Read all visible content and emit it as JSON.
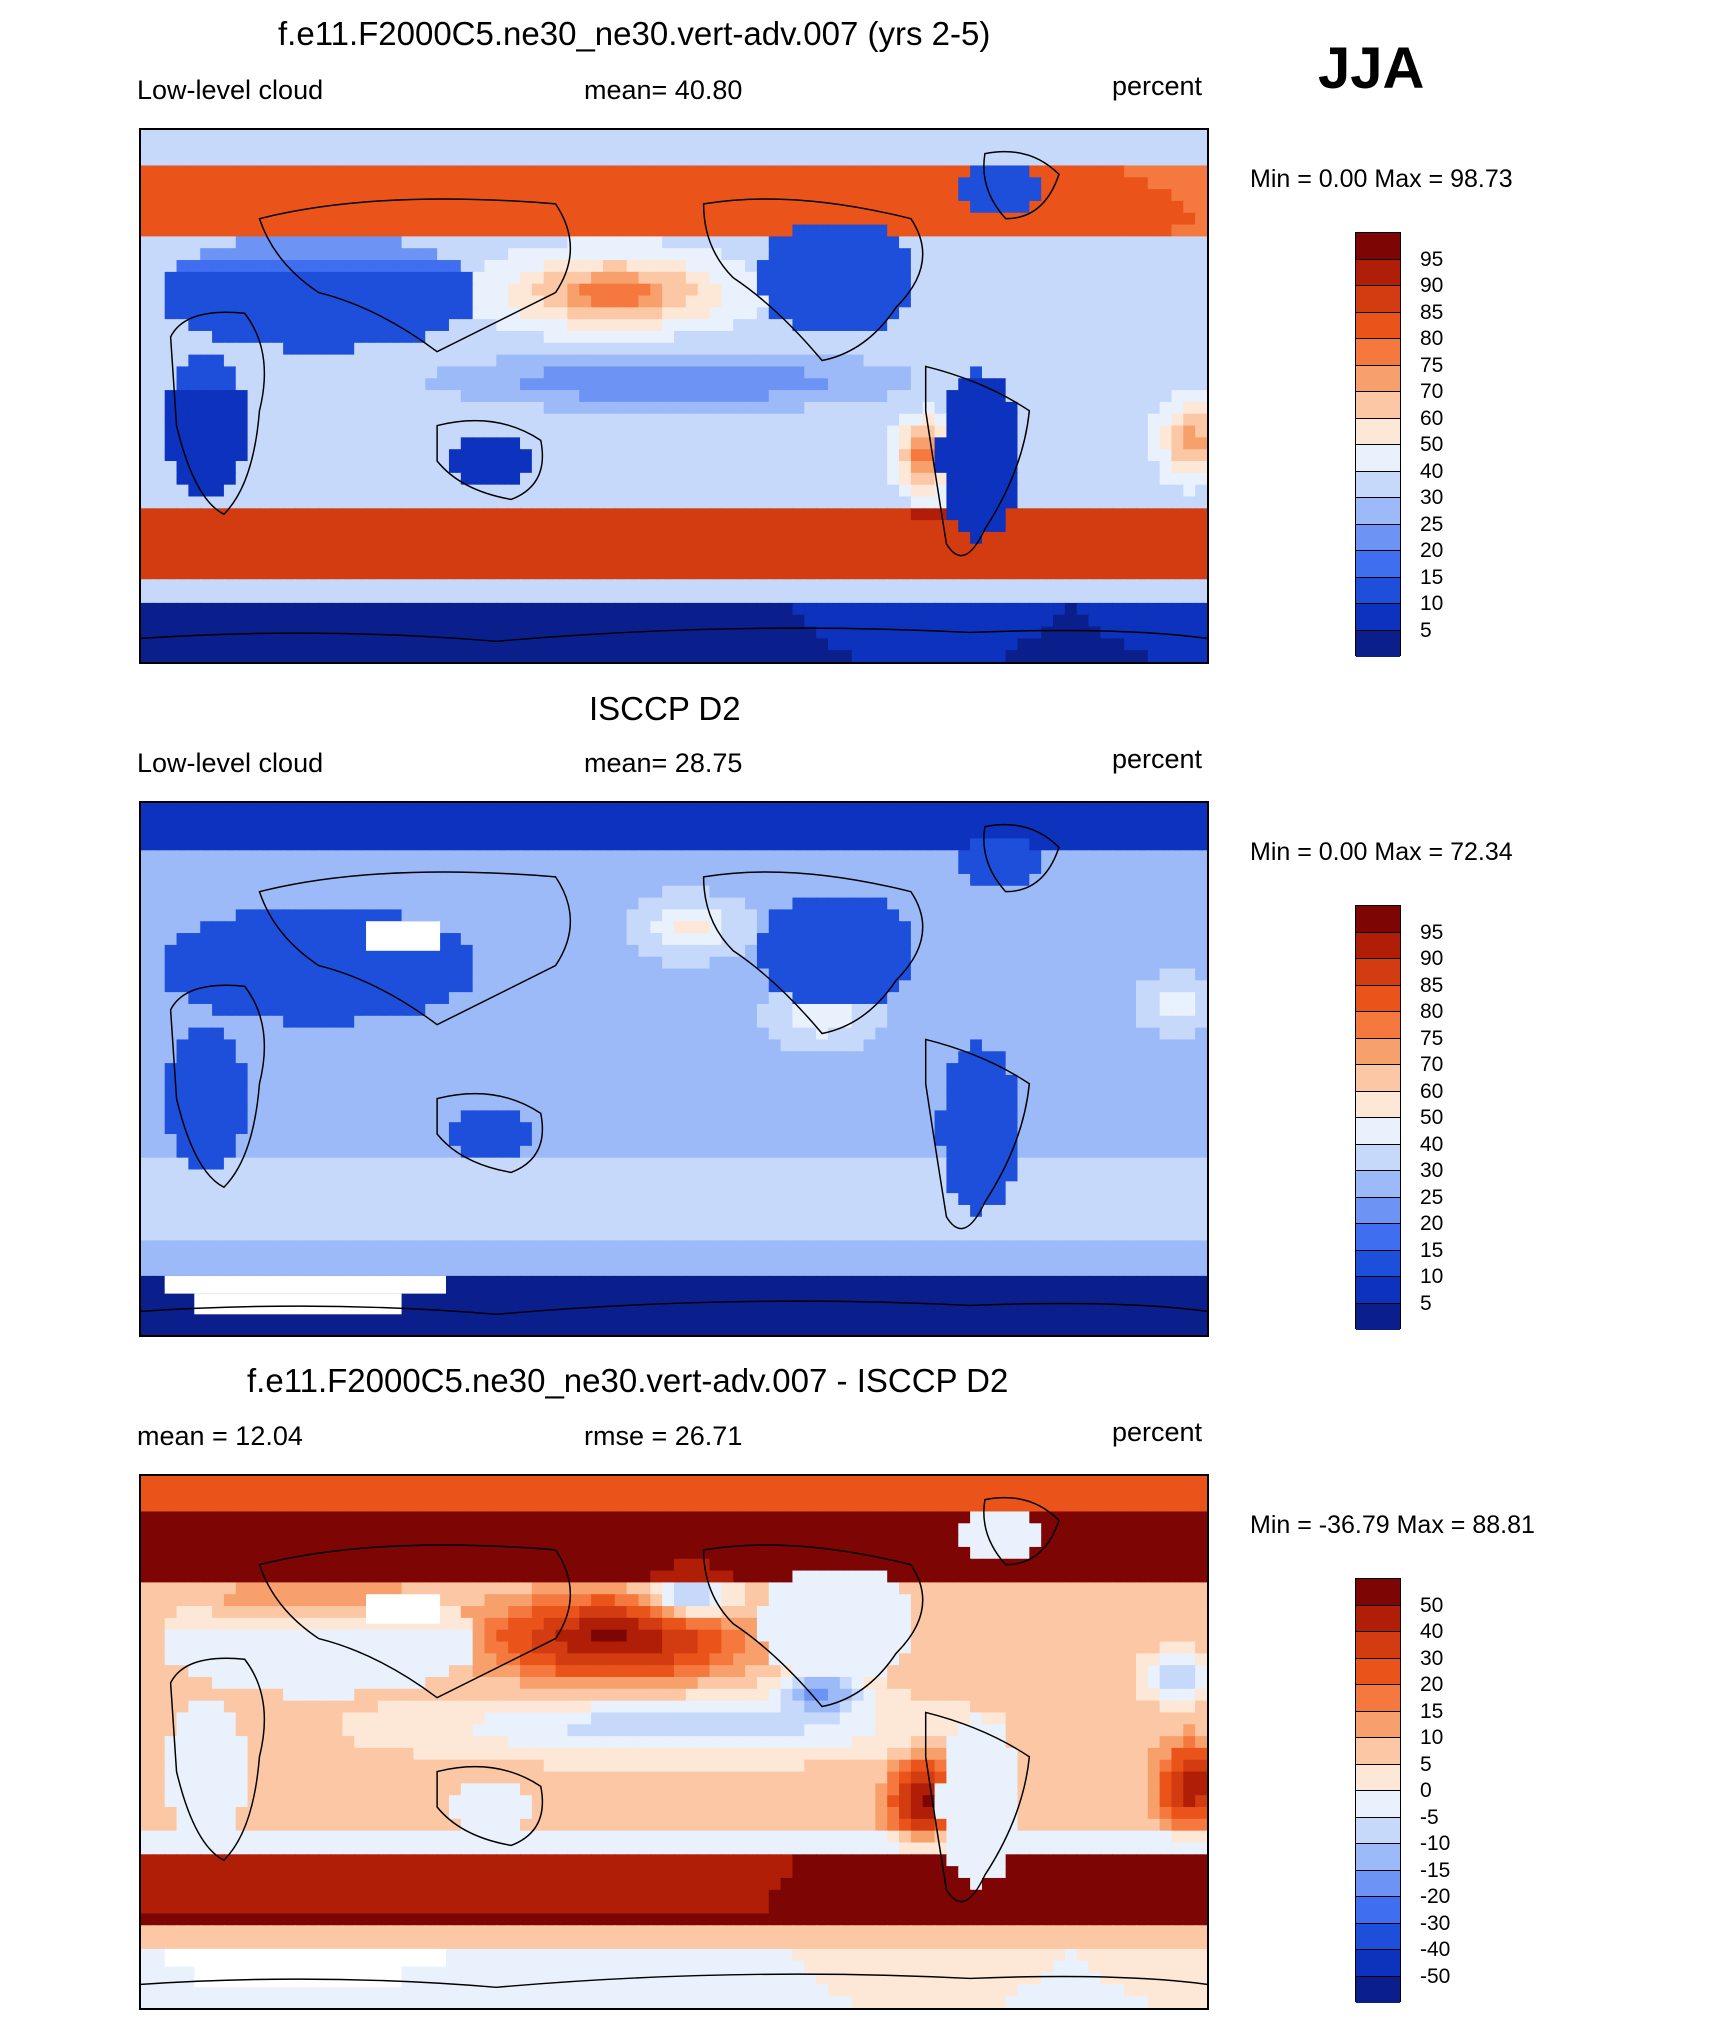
{
  "season": "JJA",
  "colors": {
    "abs_palette": [
      "#0a1f8c",
      "#0d32bd",
      "#1d4fdb",
      "#3f6ef0",
      "#6d94f5",
      "#9dbaf8",
      "#c6d9fa",
      "#e9f1fc",
      "#fde7d6",
      "#fbc7a4",
      "#f8a06c",
      "#f5793f",
      "#ea541b",
      "#d23c10",
      "#b01e07",
      "#7d0604"
    ],
    "diff_palette": [
      "#0a1f8c",
      "#0d32bd",
      "#1d4fdb",
      "#3f6ef0",
      "#6d94f5",
      "#9dbaf8",
      "#c6d9fa",
      "#e9f1fc",
      "#fde7d6",
      "#fbc7a4",
      "#f8a06c",
      "#f5793f",
      "#ea541b",
      "#d23c10",
      "#b01e07",
      "#7d0604"
    ]
  },
  "panels": [
    {
      "title": "f.e11.F2000C5.ne30_ne30.vert-adv.007 (yrs 2-5)",
      "left_label": "Low-level cloud",
      "center_label": "mean=  40.80",
      "right_label": "percent",
      "minmax": "Min =    0.00 Max =  98.73",
      "colorbar_labels": [
        "95",
        "90",
        "85",
        "80",
        "75",
        "70",
        "60",
        "50",
        "40",
        "30",
        "25",
        "20",
        "15",
        "10",
        "5"
      ],
      "field": "model"
    },
    {
      "title": "ISCCP D2",
      "left_label": "Low-level cloud",
      "center_label": "mean=  28.75",
      "right_label": "percent",
      "minmax": "Min =    0.00 Max =  72.34",
      "colorbar_labels": [
        "95",
        "90",
        "85",
        "80",
        "75",
        "70",
        "60",
        "50",
        "40",
        "30",
        "25",
        "20",
        "15",
        "10",
        "5"
      ],
      "field": "obs"
    },
    {
      "title": "f.e11.F2000C5.ne30_ne30.vert-adv.007 - ISCCP D2",
      "left_label": "mean =  12.04",
      "center_label": "rmse =  26.71",
      "right_label": "percent",
      "minmax": "Min = -36.79 Max =  88.81",
      "colorbar_labels": [
        "50",
        "40",
        "30",
        "20",
        "15",
        "10",
        "5",
        "0",
        "-5",
        "-10",
        "-15",
        "-20",
        "-30",
        "-40",
        "-50"
      ],
      "field": "diff"
    }
  ]
}
